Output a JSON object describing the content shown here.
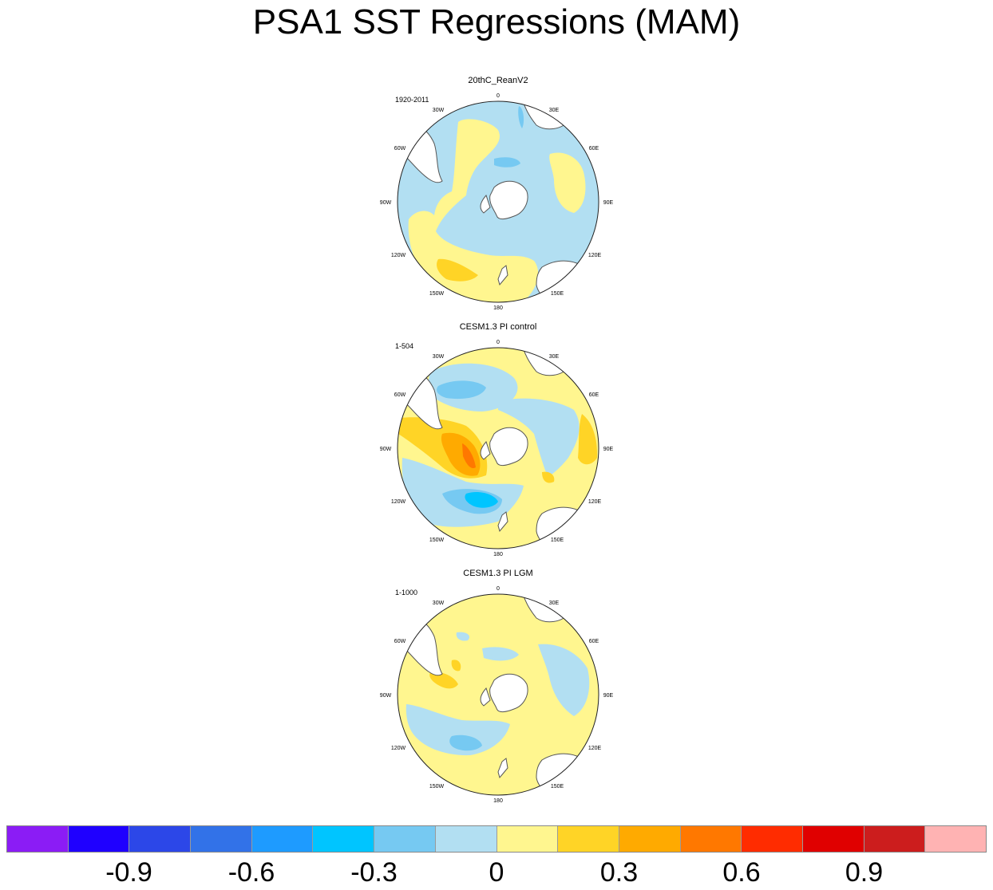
{
  "title": "PSA1 SST Regressions (MAM)",
  "panels": [
    {
      "title": "20thC_ReanV2",
      "period": "1920-2011"
    },
    {
      "title": "CESM1.3 PI control",
      "period": "1-504"
    },
    {
      "title": "CESM1.3 PI LGM",
      "period": "1-1000"
    }
  ],
  "longitude_labels": {
    "top": "0",
    "n30e": "30E",
    "n60e": "60E",
    "e90": "90E",
    "n120e": "120E",
    "n150e": "150E",
    "bottom": "180",
    "n150w": "150W",
    "n120w": "120W",
    "w90": "90W",
    "n60w": "60W",
    "n30w": "30W"
  },
  "colors": {
    "land": "#ffffff",
    "coast": "#555555",
    "bins": [
      "#8b1cf5",
      "#1f00ff",
      "#2c47e8",
      "#3272e8",
      "#1e9bff",
      "#00c5ff",
      "#76c9f2",
      "#b2dff2",
      "#fff68f",
      "#ffd426",
      "#ffaa00",
      "#ff7800",
      "#ff2c00",
      "#e00000",
      "#cc1d1d",
      "#ffb3b3"
    ]
  },
  "colorbar": {
    "labels": [
      {
        "text": "-0.9",
        "boundary": 2
      },
      {
        "text": "-0.6",
        "boundary": 4
      },
      {
        "text": "-0.3",
        "boundary": 6
      },
      {
        "text": "0",
        "boundary": 8
      },
      {
        "text": "0.3",
        "boundary": 10
      },
      {
        "text": "0.6",
        "boundary": 12
      },
      {
        "text": "0.9",
        "boundary": 14
      }
    ]
  }
}
